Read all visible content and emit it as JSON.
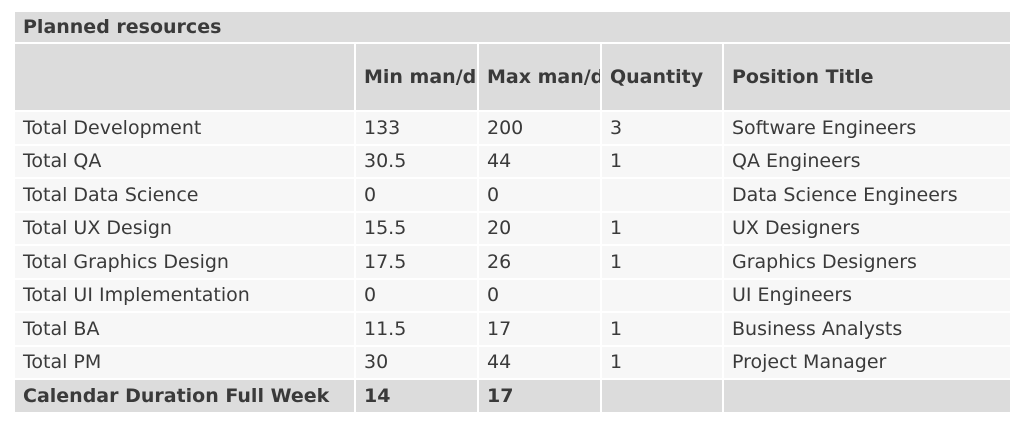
{
  "table": {
    "title": "Planned resources",
    "headers": [
      "",
      "Min man/days",
      "Max man/days",
      "Quantity",
      "Position Title"
    ],
    "rows": [
      [
        "Total Development",
        "133",
        "200",
        "3",
        "Software Engineers"
      ],
      [
        "Total QA",
        "30.5",
        "44",
        "1",
        "QA Engineers"
      ],
      [
        "Total Data Science",
        "0",
        "0",
        "",
        "Data Science Engineers"
      ],
      [
        "Total UX Design",
        "15.5",
        "20",
        "1",
        "UX Designers"
      ],
      [
        "Total Graphics Design",
        "17.5",
        "26",
        "1",
        "Graphics Designers"
      ],
      [
        "Total UI Implementation",
        "0",
        "0",
        "",
        "UI Engineers"
      ],
      [
        "Total BA",
        "11.5",
        "17",
        "1",
        "Business Analysts"
      ],
      [
        "Total PM",
        "30",
        "44",
        "1",
        "Project Manager"
      ]
    ],
    "footer": [
      "Calendar Duration Full Week",
      "14",
      "17",
      "",
      ""
    ]
  },
  "colors": {
    "header_bg": "#dcdcdc",
    "row_bg": "#f7f7f7",
    "text": "#3a3a3a"
  }
}
